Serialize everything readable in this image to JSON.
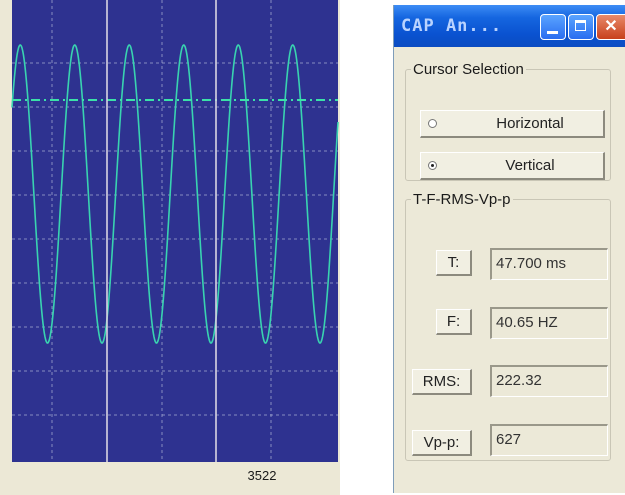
{
  "scope": {
    "x_cursor_label": "3522",
    "colors": {
      "background": "#2e3290",
      "grid": "#aab3d6",
      "waveform": "#39d3b0",
      "reference_line": "#3be2a8",
      "cursor": "#d9d4e2"
    }
  },
  "dialog": {
    "title": "CAP An...",
    "buttons": {
      "minimize": "minimize-icon",
      "maximize": "maximize-icon",
      "close": "✕"
    },
    "cursor_selection": {
      "legend": "Cursor Selection",
      "options": [
        {
          "label": "Horizontal",
          "checked": false
        },
        {
          "label": "Vertical",
          "checked": true
        }
      ]
    },
    "measurements": {
      "legend": "T-F-RMS-Vp-p",
      "rows": [
        {
          "key": "T",
          "button": "T:",
          "value": "47.700 ms"
        },
        {
          "key": "F",
          "button": "F:",
          "value": "40.65 HZ"
        },
        {
          "key": "RMS",
          "button": "RMS:",
          "value": "222.32"
        },
        {
          "key": "Vp-p",
          "button": "Vp-p:",
          "value": "627"
        }
      ]
    }
  }
}
